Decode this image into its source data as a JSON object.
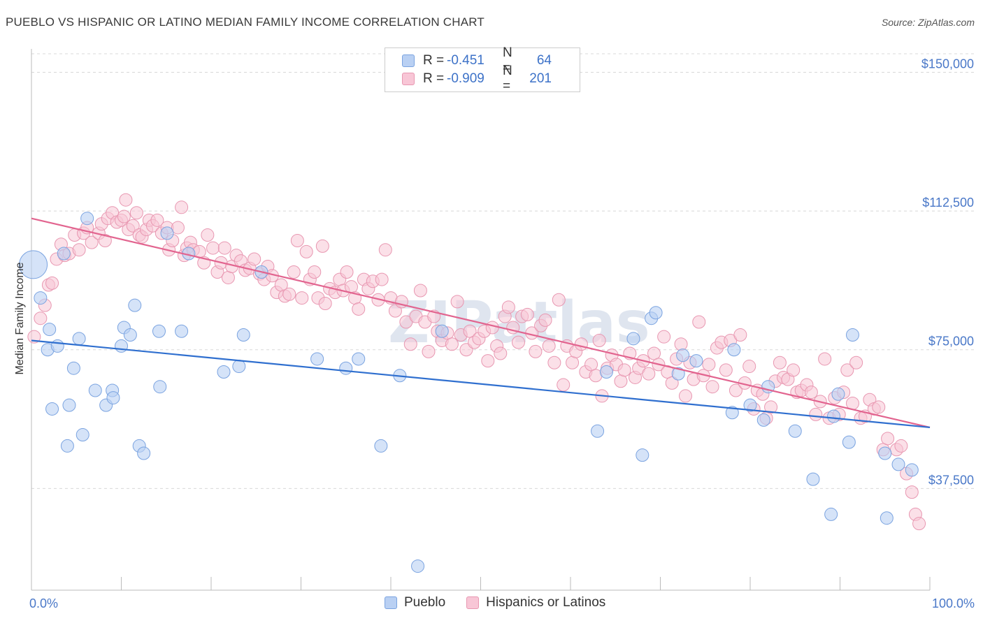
{
  "title": "PUEBLO VS HISPANIC OR LATINO MEDIAN FAMILY INCOME CORRELATION CHART",
  "source": "Source: ZipAtlas.com",
  "legend": {
    "rows": [
      {
        "series": "Pueblo",
        "r_label": "R =",
        "r_value": "-0.451",
        "n_label": "N =",
        "n_value": "64",
        "color": "#7aa3e0"
      },
      {
        "series": "Hispanics or Latinos",
        "r_label": "R =",
        "r_value": "-0.909",
        "n_label": "N =",
        "n_value": "201",
        "color": "#e897b1"
      }
    ]
  },
  "watermark": "ZIPatlas",
  "chart_data": {
    "type": "scatter",
    "title": "PUEBLO VS HISPANIC OR LATINO MEDIAN FAMILY INCOME CORRELATION CHART",
    "xlabel": "",
    "ylabel": "Median Family Income",
    "xlim": [
      0,
      100
    ],
    "ylim": [
      10000,
      155000
    ],
    "x_tick_labels": [
      "0.0%",
      "100.0%"
    ],
    "y_ticks": [
      {
        "value": 37500,
        "label": "$37,500"
      },
      {
        "value": 75000,
        "label": "$75,000"
      },
      {
        "value": 112500,
        "label": "$112,500"
      },
      {
        "value": 150000,
        "label": "$150,000"
      }
    ],
    "grid": "horizontal dashed",
    "legend_position": "top-center",
    "series": [
      {
        "name": "Pueblo",
        "color": "#7aa3e0",
        "fill": "#b9d0f3",
        "trend": {
          "x": [
            0,
            100
          ],
          "y": [
            77500,
            54000
          ]
        },
        "points": [
          [
            0.2,
            98000
          ],
          [
            1.0,
            89000
          ],
          [
            1.8,
            75000
          ],
          [
            2.0,
            80500
          ],
          [
            2.3,
            59000
          ],
          [
            2.9,
            76000
          ],
          [
            3.6,
            101000
          ],
          [
            4.0,
            49000
          ],
          [
            4.2,
            60000
          ],
          [
            4.7,
            70000
          ],
          [
            5.3,
            78000
          ],
          [
            5.7,
            52000
          ],
          [
            6.2,
            110500
          ],
          [
            7.1,
            64000
          ],
          [
            8.3,
            60000
          ],
          [
            9.0,
            64000
          ],
          [
            9.1,
            62000
          ],
          [
            10.0,
            76000
          ],
          [
            10.3,
            81000
          ],
          [
            11.0,
            79000
          ],
          [
            11.5,
            87000
          ],
          [
            12.0,
            49000
          ],
          [
            12.5,
            47000
          ],
          [
            14.2,
            80000
          ],
          [
            14.3,
            65000
          ],
          [
            15.1,
            106500
          ],
          [
            16.7,
            80000
          ],
          [
            17.5,
            101000
          ],
          [
            21.4,
            69000
          ],
          [
            23.1,
            70500
          ],
          [
            23.6,
            79000
          ],
          [
            25.6,
            96000
          ],
          [
            31.8,
            72500
          ],
          [
            35.0,
            70000
          ],
          [
            36.4,
            72500
          ],
          [
            38.9,
            49000
          ],
          [
            41.0,
            68000
          ],
          [
            43.0,
            16500
          ],
          [
            45.7,
            80000
          ],
          [
            63.0,
            53000
          ],
          [
            64.0,
            69000
          ],
          [
            67.0,
            78000
          ],
          [
            68.0,
            46500
          ],
          [
            69.0,
            83500
          ],
          [
            69.5,
            85000
          ],
          [
            72.0,
            68500
          ],
          [
            72.5,
            73500
          ],
          [
            74.0,
            72000
          ],
          [
            78.0,
            58000
          ],
          [
            78.2,
            75000
          ],
          [
            80.0,
            60000
          ],
          [
            81.5,
            56000
          ],
          [
            82.0,
            65000
          ],
          [
            85.0,
            53000
          ],
          [
            87.0,
            40000
          ],
          [
            89.0,
            30500
          ],
          [
            89.3,
            57000
          ],
          [
            89.8,
            63000
          ],
          [
            91.0,
            50000
          ],
          [
            91.4,
            79000
          ],
          [
            95.0,
            47000
          ],
          [
            95.2,
            29500
          ],
          [
            96.5,
            44000
          ],
          [
            98.0,
            42500
          ]
        ]
      },
      {
        "name": "Hispanics or Latinos",
        "color": "#e897b1",
        "fill": "#f8c6d6",
        "trend": {
          "x": [
            0,
            100
          ],
          "y": [
            110500,
            54000
          ]
        },
        "points": [
          [
            0.3,
            78500
          ],
          [
            1.0,
            83500
          ],
          [
            1.5,
            87000
          ],
          [
            1.9,
            92500
          ],
          [
            2.3,
            93000
          ],
          [
            2.8,
            99500
          ],
          [
            3.3,
            103500
          ],
          [
            3.7,
            100500
          ],
          [
            4.2,
            101000
          ],
          [
            4.8,
            106000
          ],
          [
            5.3,
            102000
          ],
          [
            5.8,
            106500
          ],
          [
            6.2,
            108000
          ],
          [
            6.7,
            104000
          ],
          [
            7.5,
            106500
          ],
          [
            7.8,
            109000
          ],
          [
            8.2,
            104500
          ],
          [
            8.5,
            110500
          ],
          [
            9.0,
            112000
          ],
          [
            9.5,
            109500
          ],
          [
            10.0,
            110000
          ],
          [
            10.3,
            111000
          ],
          [
            10.5,
            115500
          ],
          [
            10.8,
            107500
          ],
          [
            11.3,
            108500
          ],
          [
            11.7,
            112000
          ],
          [
            12.0,
            106000
          ],
          [
            12.3,
            105500
          ],
          [
            12.8,
            107500
          ],
          [
            13.1,
            110000
          ],
          [
            13.5,
            108500
          ],
          [
            14.0,
            110000
          ],
          [
            14.5,
            106500
          ],
          [
            15.1,
            108000
          ],
          [
            15.3,
            102000
          ],
          [
            15.7,
            104500
          ],
          [
            16.3,
            108000
          ],
          [
            16.7,
            113500
          ],
          [
            17.0,
            100500
          ],
          [
            17.3,
            102500
          ],
          [
            17.7,
            104000
          ],
          [
            18.0,
            102000
          ],
          [
            18.7,
            101500
          ],
          [
            19.2,
            98500
          ],
          [
            19.6,
            106000
          ],
          [
            20.2,
            102500
          ],
          [
            20.7,
            96000
          ],
          [
            21.1,
            98500
          ],
          [
            21.5,
            102500
          ],
          [
            21.9,
            94500
          ],
          [
            22.3,
            97500
          ],
          [
            22.8,
            100500
          ],
          [
            23.3,
            99000
          ],
          [
            23.8,
            96500
          ],
          [
            24.3,
            97000
          ],
          [
            24.8,
            99500
          ],
          [
            25.4,
            95500
          ],
          [
            25.9,
            94000
          ],
          [
            26.3,
            97500
          ],
          [
            26.8,
            95000
          ],
          [
            27.3,
            90500
          ],
          [
            27.8,
            92500
          ],
          [
            28.2,
            89500
          ],
          [
            28.7,
            90000
          ],
          [
            29.2,
            96000
          ],
          [
            29.6,
            104500
          ],
          [
            30.1,
            89000
          ],
          [
            30.6,
            101500
          ],
          [
            31.0,
            94000
          ],
          [
            31.5,
            96000
          ],
          [
            31.9,
            89000
          ],
          [
            32.4,
            103000
          ],
          [
            32.7,
            87500
          ],
          [
            33.2,
            91500
          ],
          [
            33.8,
            90500
          ],
          [
            34.3,
            94000
          ],
          [
            34.7,
            91000
          ],
          [
            35.1,
            96000
          ],
          [
            35.6,
            92000
          ],
          [
            36.0,
            89000
          ],
          [
            36.4,
            86000
          ],
          [
            37.0,
            94000
          ],
          [
            37.5,
            91500
          ],
          [
            38.0,
            93500
          ],
          [
            38.6,
            88500
          ],
          [
            39.0,
            94000
          ],
          [
            39.4,
            102000
          ],
          [
            40.0,
            89000
          ],
          [
            40.5,
            85500
          ],
          [
            41.2,
            88000
          ],
          [
            41.7,
            82500
          ],
          [
            42.2,
            76500
          ],
          [
            42.8,
            84000
          ],
          [
            43.3,
            91000
          ],
          [
            43.8,
            82500
          ],
          [
            44.2,
            74500
          ],
          [
            44.8,
            84000
          ],
          [
            45.2,
            80000
          ],
          [
            45.7,
            77500
          ],
          [
            46.3,
            79500
          ],
          [
            46.8,
            76500
          ],
          [
            47.4,
            88000
          ],
          [
            47.8,
            79000
          ],
          [
            48.4,
            75000
          ],
          [
            48.8,
            80000
          ],
          [
            49.3,
            77000
          ],
          [
            49.8,
            78000
          ],
          [
            50.4,
            80000
          ],
          [
            50.8,
            72000
          ],
          [
            51.3,
            81000
          ],
          [
            51.8,
            76000
          ],
          [
            52.2,
            74000
          ],
          [
            52.7,
            84000
          ],
          [
            53.1,
            86500
          ],
          [
            53.6,
            81000
          ],
          [
            54.2,
            77000
          ],
          [
            54.6,
            84000
          ],
          [
            55.2,
            84500
          ],
          [
            55.7,
            79500
          ],
          [
            56.1,
            74500
          ],
          [
            56.7,
            81500
          ],
          [
            57.2,
            83000
          ],
          [
            57.6,
            76000
          ],
          [
            58.2,
            71500
          ],
          [
            58.7,
            88500
          ],
          [
            59.2,
            65500
          ],
          [
            59.6,
            76000
          ],
          [
            60.2,
            71500
          ],
          [
            60.6,
            74500
          ],
          [
            61.2,
            76500
          ],
          [
            61.7,
            69000
          ],
          [
            62.3,
            71000
          ],
          [
            62.8,
            68000
          ],
          [
            63.2,
            77500
          ],
          [
            63.5,
            62500
          ],
          [
            64.1,
            70000
          ],
          [
            64.6,
            73500
          ],
          [
            65.1,
            71000
          ],
          [
            65.6,
            66500
          ],
          [
            66.0,
            69500
          ],
          [
            66.6,
            74000
          ],
          [
            67.2,
            67500
          ],
          [
            67.6,
            70000
          ],
          [
            68.1,
            72000
          ],
          [
            68.7,
            68500
          ],
          [
            69.3,
            74000
          ],
          [
            69.8,
            71000
          ],
          [
            70.4,
            78500
          ],
          [
            70.8,
            69000
          ],
          [
            71.3,
            66000
          ],
          [
            71.8,
            72500
          ],
          [
            72.3,
            76500
          ],
          [
            72.8,
            62500
          ],
          [
            73.3,
            71500
          ],
          [
            73.7,
            67000
          ],
          [
            74.3,
            82500
          ],
          [
            74.8,
            68000
          ],
          [
            75.4,
            71000
          ],
          [
            75.8,
            65000
          ],
          [
            76.3,
            75500
          ],
          [
            76.8,
            77000
          ],
          [
            77.3,
            69500
          ],
          [
            77.8,
            77500
          ],
          [
            78.4,
            64000
          ],
          [
            78.9,
            79000
          ],
          [
            79.4,
            66000
          ],
          [
            79.9,
            70500
          ],
          [
            80.4,
            59000
          ],
          [
            80.8,
            64000
          ],
          [
            81.4,
            63000
          ],
          [
            81.8,
            56500
          ],
          [
            82.3,
            59500
          ],
          [
            82.8,
            66500
          ],
          [
            83.3,
            71500
          ],
          [
            83.7,
            67500
          ],
          [
            84.2,
            67000
          ],
          [
            84.8,
            69500
          ],
          [
            85.2,
            63500
          ],
          [
            85.7,
            64000
          ],
          [
            86.3,
            65500
          ],
          [
            86.8,
            63500
          ],
          [
            87.3,
            57500
          ],
          [
            87.8,
            61000
          ],
          [
            88.3,
            72500
          ],
          [
            88.8,
            56500
          ],
          [
            89.4,
            62000
          ],
          [
            89.9,
            57500
          ],
          [
            90.4,
            63500
          ],
          [
            90.8,
            69500
          ],
          [
            91.4,
            60500
          ],
          [
            91.8,
            71500
          ],
          [
            92.3,
            56500
          ],
          [
            92.8,
            57000
          ],
          [
            93.3,
            61500
          ],
          [
            93.8,
            59000
          ],
          [
            94.3,
            59500
          ],
          [
            94.8,
            48000
          ],
          [
            95.3,
            51000
          ],
          [
            96.3,
            48000
          ],
          [
            96.8,
            49000
          ],
          [
            97.4,
            41500
          ],
          [
            98.0,
            36500
          ],
          [
            98.4,
            30500
          ],
          [
            98.8,
            28000
          ]
        ]
      }
    ]
  }
}
